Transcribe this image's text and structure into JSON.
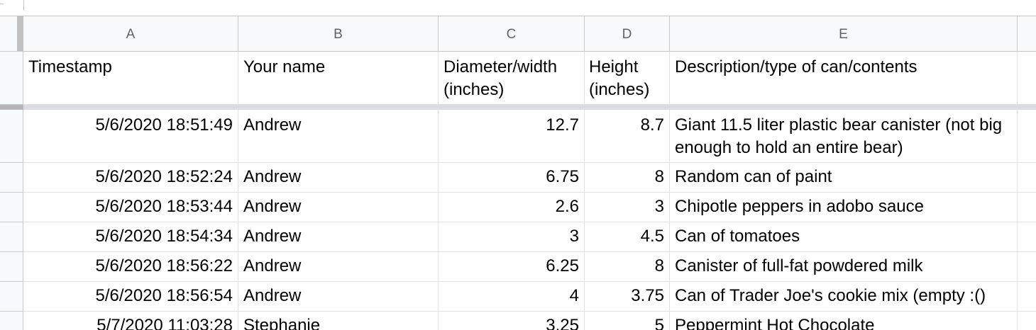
{
  "columns": [
    "A",
    "B",
    "C",
    "D",
    "E"
  ],
  "header_row": {
    "timestamp": "Timestamp",
    "name": "Your name",
    "diameter_line1": "Diameter/width",
    "diameter_line2": "(inches)",
    "height_line1": "Height",
    "height_line2": "(inches)",
    "description": "Description/type of can/contents"
  },
  "rows": [
    {
      "timestamp": "5/6/2020 18:51:49",
      "name": "Andrew",
      "diameter": "12.7",
      "height": "8.7",
      "description": "Giant 11.5 liter plastic bear canister (not big enough to hold an entire bear)"
    },
    {
      "timestamp": "5/6/2020 18:52:24",
      "name": "Andrew",
      "diameter": "6.75",
      "height": "8",
      "description": "Random can of paint"
    },
    {
      "timestamp": "5/6/2020 18:53:44",
      "name": "Andrew",
      "diameter": "2.6",
      "height": "3",
      "description": "Chipotle peppers in adobo sauce"
    },
    {
      "timestamp": "5/6/2020 18:54:34",
      "name": "Andrew",
      "diameter": "3",
      "height": "4.5",
      "description": "Can of tomatoes"
    },
    {
      "timestamp": "5/6/2020 18:56:22",
      "name": "Andrew",
      "diameter": "6.25",
      "height": "8",
      "description": "Canister of full-fat powdered milk"
    },
    {
      "timestamp": "5/6/2020 18:56:54",
      "name": "Andrew",
      "diameter": "4",
      "height": "3.75",
      "description": "Can of Trader Joe's cookie mix (empty :()"
    },
    {
      "timestamp": "5/7/2020 11:03:28",
      "name": "Stephanie",
      "diameter": "3.25",
      "height": "5",
      "description": "Peppermint Hot Chocolate"
    }
  ]
}
